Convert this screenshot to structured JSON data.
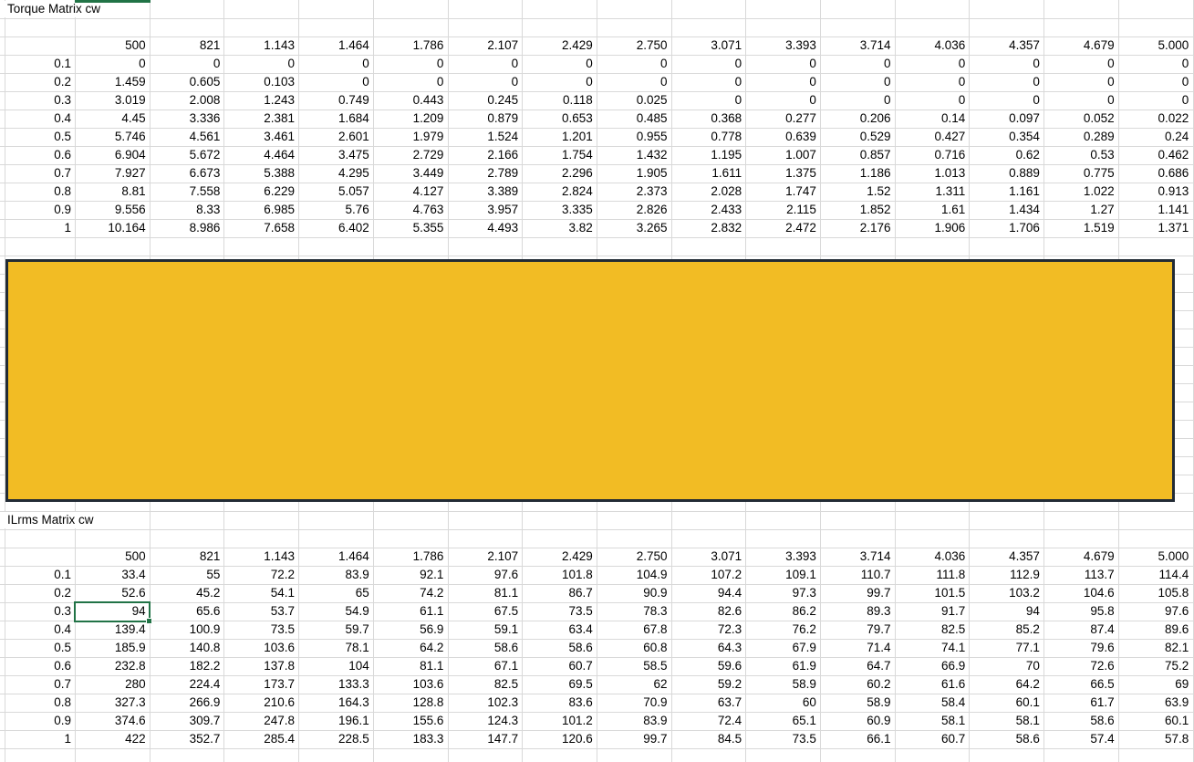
{
  "sheet": {
    "gridline_color": "#D9D9D9",
    "top_matrix": {
      "title": "Torque Matrix cw",
      "col_headers": [
        "500",
        "821",
        "1.143",
        "1.464",
        "1.786",
        "2.107",
        "2.429",
        "2.750",
        "3.071",
        "3.393",
        "3.714",
        "4.036",
        "4.357",
        "4.679",
        "5.000"
      ],
      "rows": [
        {
          "label": "0.1",
          "values": [
            "0",
            "0",
            "0",
            "0",
            "0",
            "0",
            "0",
            "0",
            "0",
            "0",
            "0",
            "0",
            "0",
            "0",
            "0"
          ]
        },
        {
          "label": "0.2",
          "values": [
            "1.459",
            "0.605",
            "0.103",
            "0",
            "0",
            "0",
            "0",
            "0",
            "0",
            "0",
            "0",
            "0",
            "0",
            "0",
            "0"
          ]
        },
        {
          "label": "0.3",
          "values": [
            "3.019",
            "2.008",
            "1.243",
            "0.749",
            "0.443",
            "0.245",
            "0.118",
            "0.025",
            "0",
            "0",
            "0",
            "0",
            "0",
            "0",
            "0"
          ]
        },
        {
          "label": "0.4",
          "values": [
            "4.45",
            "3.336",
            "2.381",
            "1.684",
            "1.209",
            "0.879",
            "0.653",
            "0.485",
            "0.368",
            "0.277",
            "0.206",
            "0.14",
            "0.097",
            "0.052",
            "0.022"
          ]
        },
        {
          "label": "0.5",
          "values": [
            "5.746",
            "4.561",
            "3.461",
            "2.601",
            "1.979",
            "1.524",
            "1.201",
            "0.955",
            "0.778",
            "0.639",
            "0.529",
            "0.427",
            "0.354",
            "0.289",
            "0.24"
          ]
        },
        {
          "label": "0.6",
          "values": [
            "6.904",
            "5.672",
            "4.464",
            "3.475",
            "2.729",
            "2.166",
            "1.754",
            "1.432",
            "1.195",
            "1.007",
            "0.857",
            "0.716",
            "0.62",
            "0.53",
            "0.462"
          ]
        },
        {
          "label": "0.7",
          "values": [
            "7.927",
            "6.673",
            "5.388",
            "4.295",
            "3.449",
            "2.789",
            "2.296",
            "1.905",
            "1.611",
            "1.375",
            "1.186",
            "1.013",
            "0.889",
            "0.775",
            "0.686"
          ]
        },
        {
          "label": "0.8",
          "values": [
            "8.81",
            "7.558",
            "6.229",
            "5.057",
            "4.127",
            "3.389",
            "2.824",
            "2.373",
            "2.028",
            "1.747",
            "1.52",
            "1.311",
            "1.161",
            "1.022",
            "0.913"
          ]
        },
        {
          "label": "0.9",
          "values": [
            "9.556",
            "8.33",
            "6.985",
            "5.76",
            "4.763",
            "3.957",
            "3.335",
            "2.826",
            "2.433",
            "2.115",
            "1.852",
            "1.61",
            "1.434",
            "1.27",
            "1.141"
          ]
        },
        {
          "label": "1",
          "values": [
            "10.164",
            "8.986",
            "7.658",
            "6.402",
            "5.355",
            "4.493",
            "3.82",
            "3.265",
            "2.832",
            "2.472",
            "2.176",
            "1.906",
            "1.706",
            "1.519",
            "1.371"
          ]
        }
      ]
    },
    "shape": {
      "type": "rectangle",
      "fill": "#F2BC24",
      "border": "#222B35"
    },
    "bottom_matrix": {
      "title": "ILrms Matrix cw",
      "col_headers": [
        "500",
        "821",
        "1.143",
        "1.464",
        "1.786",
        "2.107",
        "2.429",
        "2.750",
        "3.071",
        "3.393",
        "3.714",
        "4.036",
        "4.357",
        "4.679",
        "5.000"
      ],
      "rows": [
        {
          "label": "0.1",
          "values": [
            "33.4",
            "55",
            "72.2",
            "83.9",
            "92.1",
            "97.6",
            "101.8",
            "104.9",
            "107.2",
            "109.1",
            "110.7",
            "111.8",
            "112.9",
            "113.7",
            "114.4"
          ]
        },
        {
          "label": "0.2",
          "values": [
            "52.6",
            "45.2",
            "54.1",
            "65",
            "74.2",
            "81.1",
            "86.7",
            "90.9",
            "94.4",
            "97.3",
            "99.7",
            "101.5",
            "103.2",
            "104.6",
            "105.8"
          ]
        },
        {
          "label": "0.3",
          "values": [
            "94",
            "65.6",
            "53.7",
            "54.9",
            "61.1",
            "67.5",
            "73.5",
            "78.3",
            "82.6",
            "86.2",
            "89.3",
            "91.7",
            "94",
            "95.8",
            "97.6"
          ]
        },
        {
          "label": "0.4",
          "values": [
            "139.4",
            "100.9",
            "73.5",
            "59.7",
            "56.9",
            "59.1",
            "63.4",
            "67.8",
            "72.3",
            "76.2",
            "79.7",
            "82.5",
            "85.2",
            "87.4",
            "89.6"
          ]
        },
        {
          "label": "0.5",
          "values": [
            "185.9",
            "140.8",
            "103.6",
            "78.1",
            "64.2",
            "58.6",
            "58.6",
            "60.8",
            "64.3",
            "67.9",
            "71.4",
            "74.1",
            "77.1",
            "79.6",
            "82.1"
          ]
        },
        {
          "label": "0.6",
          "values": [
            "232.8",
            "182.2",
            "137.8",
            "104",
            "81.1",
            "67.1",
            "60.7",
            "58.5",
            "59.6",
            "61.9",
            "64.7",
            "66.9",
            "70",
            "72.6",
            "75.2"
          ]
        },
        {
          "label": "0.7",
          "values": [
            "280",
            "224.4",
            "173.7",
            "133.3",
            "103.6",
            "82.5",
            "69.5",
            "62",
            "59.2",
            "58.9",
            "60.2",
            "61.6",
            "64.2",
            "66.5",
            "69"
          ]
        },
        {
          "label": "0.8",
          "values": [
            "327.3",
            "266.9",
            "210.6",
            "164.3",
            "128.8",
            "102.3",
            "83.6",
            "70.9",
            "63.7",
            "60",
            "58.9",
            "58.4",
            "60.1",
            "61.7",
            "63.9"
          ]
        },
        {
          "label": "0.9",
          "values": [
            "374.6",
            "309.7",
            "247.8",
            "196.1",
            "155.6",
            "124.3",
            "101.2",
            "83.9",
            "72.4",
            "65.1",
            "60.9",
            "58.1",
            "58.1",
            "58.6",
            "60.1"
          ]
        },
        {
          "label": "1",
          "values": [
            "422",
            "352.7",
            "285.4",
            "228.5",
            "183.3",
            "147.7",
            "120.6",
            "99.7",
            "84.5",
            "73.5",
            "66.1",
            "60.7",
            "58.6",
            "57.4",
            "57.8"
          ]
        }
      ]
    },
    "selection": {
      "active_cell_value": "94",
      "row_label": "0.3",
      "column_header": "500",
      "color": "#217346"
    }
  }
}
